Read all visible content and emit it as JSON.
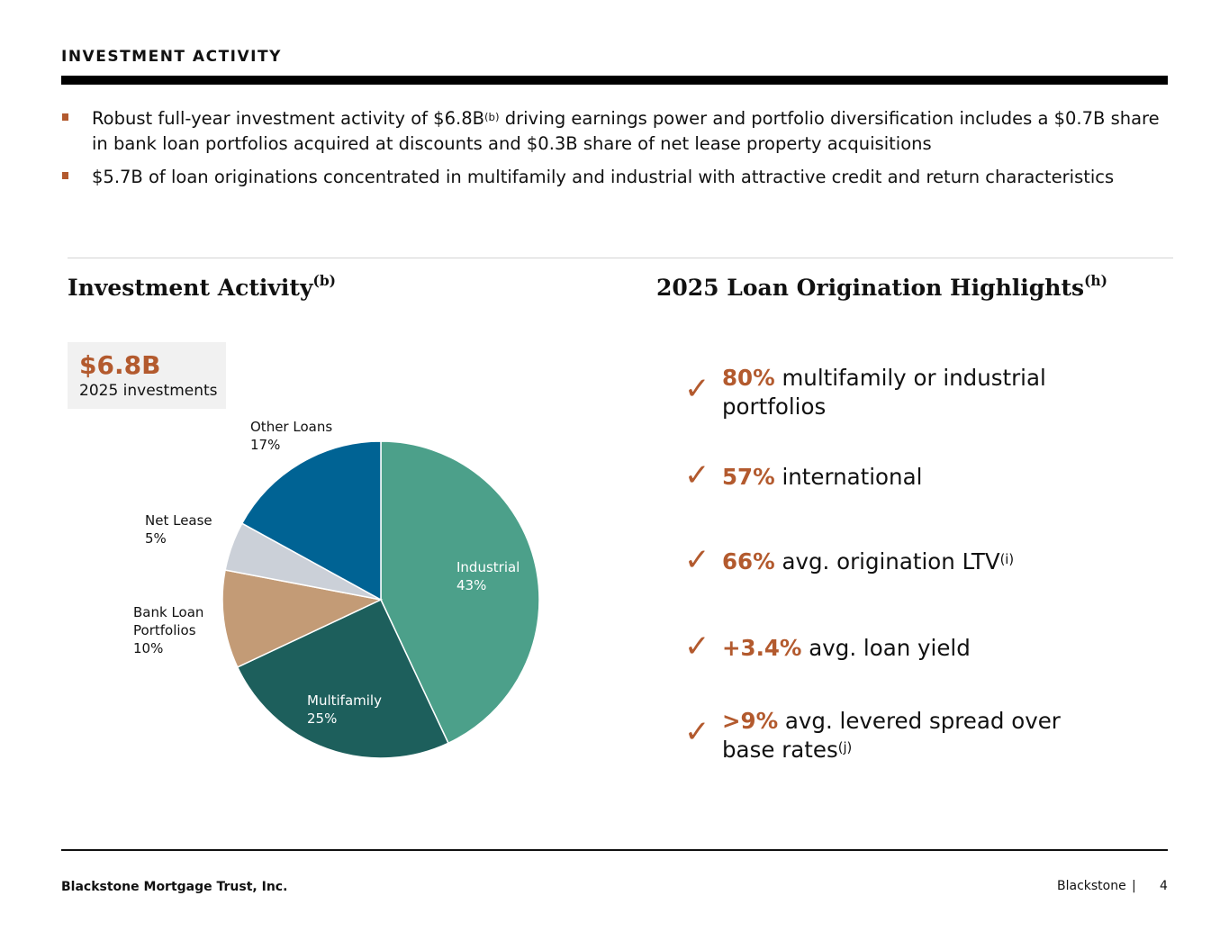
{
  "header": {
    "section_title": "INVESTMENT ACTIVITY"
  },
  "bullets": [
    {
      "text_before": "Robust full-year investment activity of $6.8B",
      "sup": "(b)",
      "text_after": " driving earnings power and portfolio diversification includes a $0.7B share in bank loan portfolios acquired at discounts and $0.3B share of net lease property acquisitions"
    },
    {
      "text_before": "$5.7B of loan originations concentrated in multifamily and industrial with attractive credit and return characteristics",
      "sup": "",
      "text_after": ""
    }
  ],
  "left_panel": {
    "title": "Investment Activity",
    "title_sup": "(b)",
    "kpi_value": "$6.8B",
    "kpi_label": "2025 investments"
  },
  "right_panel": {
    "title": "2025 Loan Origination Highlights",
    "title_sup": "(h)",
    "check_icon": "checkmark-icon",
    "highlights": [
      {
        "accent": "80%",
        "text": " multifamily or industrial portfolios",
        "sup": ""
      },
      {
        "accent": "57%",
        "text": " international",
        "sup": ""
      },
      {
        "accent": "66%",
        "text": " avg. origination LTV",
        "sup": "(i)"
      },
      {
        "accent": "+3.4%",
        "text": " avg. loan yield",
        "sup": ""
      },
      {
        "accent": ">9%",
        "text": " avg. levered spread over base rates",
        "sup": "(j)"
      }
    ]
  },
  "colors": {
    "accent": "#B35A2E",
    "industrial": "#4CA08A",
    "multifamily": "#1D5F5C",
    "bank_loan": "#C39B76",
    "net_lease": "#CBD0D8",
    "other_loans": "#006394"
  },
  "chart_data": {
    "type": "pie",
    "title": "Investment Activity",
    "total_label": "$6.8B 2025 investments",
    "start": "top",
    "direction": "clockwise",
    "slices": [
      {
        "label": "Industrial",
        "value": 43,
        "display": "43%",
        "color": "#4CA08A",
        "label_position": "inside"
      },
      {
        "label": "Multifamily",
        "value": 25,
        "display": "25%",
        "color": "#1D5F5C",
        "label_position": "inside"
      },
      {
        "label": "Bank Loan Portfolios",
        "value": 10,
        "display": "10%",
        "color": "#C39B76",
        "label_position": "outside"
      },
      {
        "label": "Net Lease",
        "value": 5,
        "display": "5%",
        "color": "#CBD0D8",
        "label_position": "outside"
      },
      {
        "label": "Other Loans",
        "value": 17,
        "display": "17%",
        "color": "#006394",
        "label_position": "outside"
      }
    ],
    "legend": "none"
  },
  "footer": {
    "company": "Blackstone Mortgage Trust, Inc.",
    "brand": "Blackstone",
    "separator": "|",
    "page_number": "4"
  }
}
